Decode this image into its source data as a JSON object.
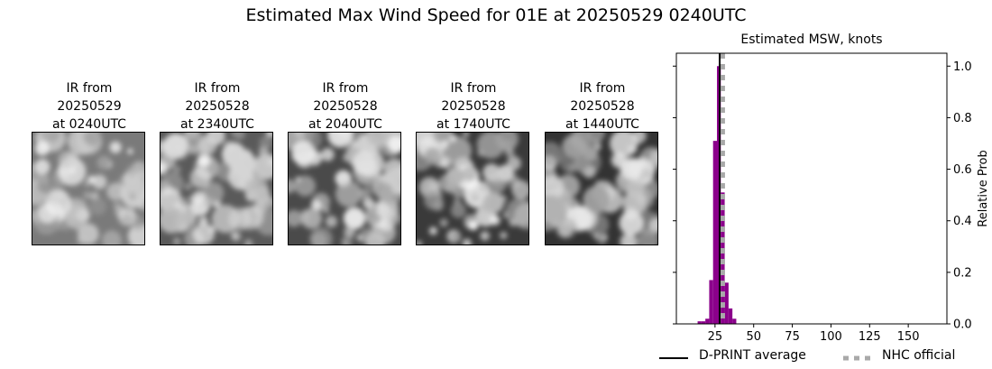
{
  "title": "Estimated Max Wind Speed for 01E at 20250529 0240UTC",
  "ir_panels": [
    {
      "line1": "IR from",
      "line2": "20250529",
      "line3": "at 0240UTC"
    },
    {
      "line1": "IR from",
      "line2": "20250528",
      "line3": "at 2340UTC"
    },
    {
      "line1": "IR from",
      "line2": "20250528",
      "line3": "at 2040UTC"
    },
    {
      "line1": "IR from",
      "line2": "20250528",
      "line3": "at 1740UTC"
    },
    {
      "line1": "IR from",
      "line2": "20250528",
      "line3": "at 1440UTC"
    }
  ],
  "legend": {
    "dprint_label": "D-PRINT average",
    "nhc_label": "NHC official"
  },
  "colors": {
    "bar": "#8b008b",
    "dprint_line": "#000000",
    "nhc_line": "#a9a9a9"
  },
  "chart_data": {
    "type": "bar",
    "title": "Estimated MSW, knots",
    "xlabel": "",
    "ylabel": "Relative Prob",
    "xlim": [
      0,
      175
    ],
    "ylim": [
      0,
      1.05
    ],
    "xticks": [
      25,
      50,
      75,
      100,
      125,
      150
    ],
    "yticks": [
      0.0,
      0.2,
      0.4,
      0.6,
      0.8,
      1.0
    ],
    "y_axis_side": "right",
    "bin_width": 2.5,
    "bins": [
      {
        "x": 15,
        "value": 0.01
      },
      {
        "x": 17.5,
        "value": 0.01
      },
      {
        "x": 20,
        "value": 0.02
      },
      {
        "x": 22.5,
        "value": 0.17
      },
      {
        "x": 25,
        "value": 0.71
      },
      {
        "x": 27.5,
        "value": 1.0
      },
      {
        "x": 30,
        "value": 0.51
      },
      {
        "x": 32.5,
        "value": 0.16
      },
      {
        "x": 35,
        "value": 0.06
      },
      {
        "x": 37.5,
        "value": 0.02
      }
    ],
    "dprint_average": 28,
    "nhc_official": 30,
    "legend_position": "bottom"
  }
}
